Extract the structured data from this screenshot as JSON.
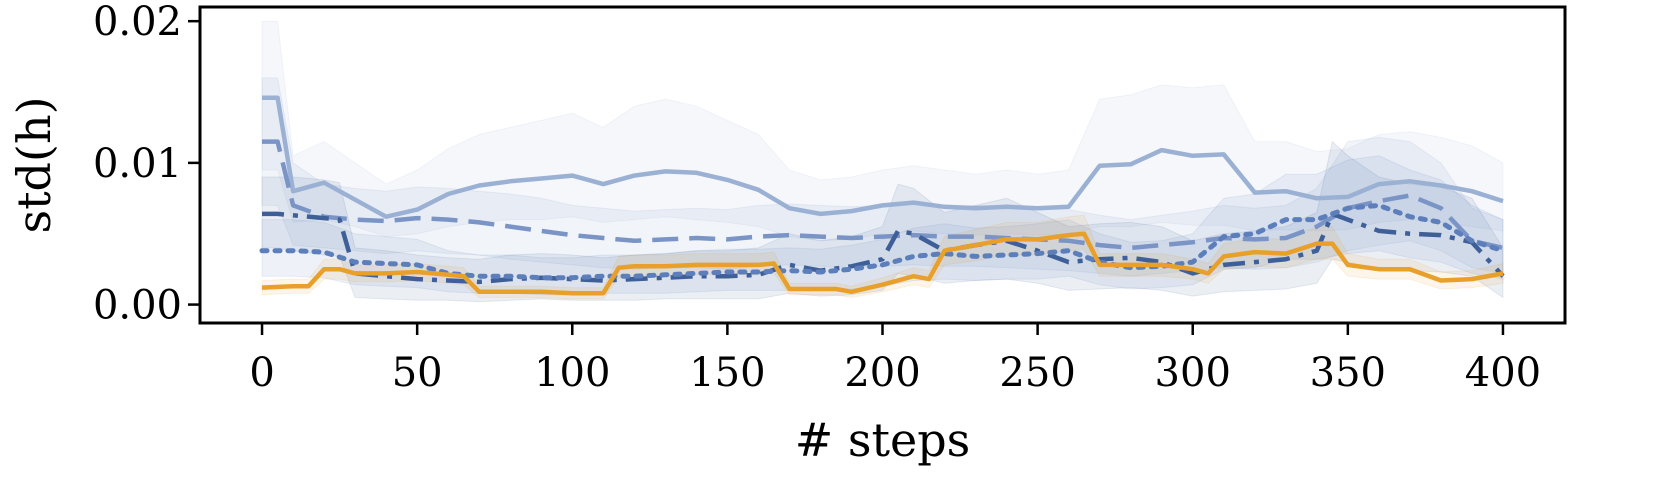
{
  "chart_data": {
    "type": "line",
    "title": "",
    "xlabel": "# steps",
    "ylabel": "std(h)",
    "xlim": [
      -20,
      420
    ],
    "ylim": [
      -0.0013,
      0.021
    ],
    "xticks": [
      0,
      50,
      100,
      150,
      200,
      250,
      300,
      350,
      400
    ],
    "xtick_labels": [
      "0",
      "50",
      "100",
      "150",
      "200",
      "250",
      "300",
      "350",
      "400"
    ],
    "yticks": [
      0.0,
      0.01,
      0.02
    ],
    "ytick_labels": [
      "0.00",
      "0.01",
      "0.02"
    ],
    "grid": false,
    "legend": "none",
    "series": [
      {
        "name": "solid light blue",
        "color": "#9bb1d4",
        "style": "solid",
        "x": [
          0,
          5,
          10,
          20,
          30,
          40,
          50,
          60,
          70,
          80,
          90,
          100,
          110,
          120,
          130,
          140,
          150,
          160,
          170,
          180,
          190,
          200,
          210,
          220,
          230,
          240,
          250,
          260,
          270,
          280,
          290,
          300,
          310,
          320,
          330,
          340,
          350,
          360,
          370,
          380,
          390,
          400
        ],
        "y": [
          0.0146,
          0.0146,
          0.008,
          0.0086,
          0.0074,
          0.0062,
          0.0067,
          0.0078,
          0.0084,
          0.0087,
          0.0089,
          0.0091,
          0.0085,
          0.0091,
          0.0094,
          0.0093,
          0.0088,
          0.0081,
          0.0068,
          0.0064,
          0.0066,
          0.007,
          0.0072,
          0.0069,
          0.0068,
          0.0069,
          0.0068,
          0.0069,
          0.0098,
          0.0099,
          0.0109,
          0.0105,
          0.0106,
          0.0079,
          0.008,
          0.0075,
          0.0076,
          0.0085,
          0.0087,
          0.0084,
          0.008,
          0.0073
        ],
        "band_lo": [
          0.0095,
          0.0095,
          0.0058,
          0.006,
          0.0055,
          0.0048,
          0.005,
          0.0055,
          0.0058,
          0.006,
          0.006,
          0.0062,
          0.0058,
          0.006,
          0.0062,
          0.006,
          0.0058,
          0.0055,
          0.0048,
          0.0045,
          0.0046,
          0.005,
          0.0052,
          0.005,
          0.0049,
          0.005,
          0.0049,
          0.005,
          0.0055,
          0.0055,
          0.0058,
          0.0056,
          0.0056,
          0.0052,
          0.0053,
          0.0052,
          0.0053,
          0.0058,
          0.006,
          0.0058,
          0.0055,
          0.0052
        ],
        "band_hi": [
          0.02,
          0.02,
          0.0105,
          0.0115,
          0.01,
          0.0085,
          0.0095,
          0.011,
          0.012,
          0.0125,
          0.013,
          0.0135,
          0.0125,
          0.014,
          0.0145,
          0.014,
          0.013,
          0.012,
          0.0095,
          0.0088,
          0.009,
          0.0095,
          0.0098,
          0.0095,
          0.0092,
          0.0095,
          0.0092,
          0.0095,
          0.0145,
          0.0148,
          0.0155,
          0.0153,
          0.0155,
          0.0115,
          0.0115,
          0.0108,
          0.011,
          0.012,
          0.0122,
          0.0118,
          0.0112,
          0.01
        ]
      },
      {
        "name": "dashed blue",
        "color": "#7a94c6",
        "style": "dashed",
        "x": [
          0,
          5,
          10,
          20,
          30,
          40,
          50,
          60,
          70,
          80,
          90,
          100,
          110,
          120,
          130,
          140,
          150,
          160,
          170,
          180,
          190,
          200,
          210,
          220,
          230,
          240,
          250,
          260,
          270,
          280,
          290,
          300,
          310,
          320,
          330,
          340,
          350,
          360,
          370,
          380,
          390,
          400
        ],
        "y": [
          0.0115,
          0.0115,
          0.007,
          0.0062,
          0.006,
          0.0059,
          0.0061,
          0.006,
          0.0058,
          0.0055,
          0.0052,
          0.0049,
          0.0047,
          0.0045,
          0.0046,
          0.0047,
          0.0046,
          0.0048,
          0.0049,
          0.0048,
          0.0047,
          0.0048,
          0.0049,
          0.0048,
          0.0048,
          0.0047,
          0.0046,
          0.0045,
          0.0042,
          0.004,
          0.0042,
          0.0044,
          0.0047,
          0.0046,
          0.0047,
          0.0055,
          0.0068,
          0.0073,
          0.0077,
          0.0068,
          0.0045,
          0.004
        ],
        "band_lo": [
          0.007,
          0.007,
          0.0042,
          0.004,
          0.0038,
          0.0036,
          0.0038,
          0.0036,
          0.0035,
          0.0032,
          0.003,
          0.0028,
          0.0026,
          0.0025,
          0.0026,
          0.0026,
          0.0025,
          0.0027,
          0.0028,
          0.0027,
          0.0026,
          0.0027,
          0.0028,
          0.0027,
          0.0027,
          0.0026,
          0.0025,
          0.0024,
          0.0022,
          0.002,
          0.0022,
          0.0024,
          0.0026,
          0.0025,
          0.0026,
          0.003,
          0.0038,
          0.0042,
          0.0045,
          0.0038,
          0.0026,
          0.0022
        ],
        "band_hi": [
          0.016,
          0.016,
          0.01,
          0.0085,
          0.0082,
          0.008,
          0.0083,
          0.0082,
          0.008,
          0.0078,
          0.0075,
          0.007,
          0.0068,
          0.0066,
          0.0067,
          0.0068,
          0.0067,
          0.007,
          0.0071,
          0.007,
          0.0069,
          0.007,
          0.0071,
          0.007,
          0.007,
          0.0069,
          0.0068,
          0.0067,
          0.0063,
          0.006,
          0.0063,
          0.0066,
          0.007,
          0.0068,
          0.007,
          0.0082,
          0.0115,
          0.0118,
          0.0115,
          0.01,
          0.0068,
          0.006
        ]
      },
      {
        "name": "dash-dot dark blue",
        "color": "#3e5f97",
        "style": "dashdot",
        "x": [
          0,
          5,
          10,
          20,
          25,
          30,
          40,
          50,
          60,
          70,
          80,
          90,
          100,
          110,
          120,
          130,
          140,
          150,
          160,
          170,
          180,
          190,
          200,
          205,
          210,
          220,
          230,
          240,
          250,
          260,
          270,
          280,
          290,
          300,
          310,
          320,
          330,
          340,
          345,
          350,
          360,
          370,
          380,
          390,
          400
        ],
        "y": [
          0.0064,
          0.0064,
          0.0063,
          0.0061,
          0.006,
          0.0022,
          0.002,
          0.0018,
          0.0017,
          0.0016,
          0.0018,
          0.0019,
          0.0018,
          0.0017,
          0.0018,
          0.0019,
          0.002,
          0.002,
          0.0021,
          0.0028,
          0.0024,
          0.0027,
          0.0032,
          0.0052,
          0.005,
          0.0038,
          0.0042,
          0.0045,
          0.0038,
          0.003,
          0.0032,
          0.0033,
          0.003,
          0.0022,
          0.0028,
          0.003,
          0.0032,
          0.0038,
          0.0064,
          0.006,
          0.0052,
          0.005,
          0.0049,
          0.0044,
          0.002
        ],
        "band_lo": [
          0.004,
          0.004,
          0.0038,
          0.0035,
          0.0034,
          0.0005,
          0.0004,
          0.0003,
          0.0003,
          0.0002,
          0.0003,
          0.0004,
          0.0003,
          0.0003,
          0.0003,
          0.0004,
          0.0004,
          0.0004,
          0.0004,
          0.0008,
          0.0006,
          0.0007,
          0.001,
          0.0022,
          0.002,
          0.0015,
          0.0017,
          0.0018,
          0.0015,
          0.001,
          0.0011,
          0.0012,
          0.001,
          0.0006,
          0.0009,
          0.001,
          0.0011,
          0.0015,
          0.0032,
          0.003,
          0.0025,
          0.0024,
          0.0023,
          0.002,
          0.0005
        ],
        "band_hi": [
          0.009,
          0.009,
          0.009,
          0.0088,
          0.0086,
          0.004,
          0.0038,
          0.0035,
          0.0033,
          0.0032,
          0.0035,
          0.0036,
          0.0035,
          0.0033,
          0.0035,
          0.0036,
          0.0038,
          0.0038,
          0.004,
          0.005,
          0.0045,
          0.0048,
          0.0055,
          0.0085,
          0.0082,
          0.0065,
          0.007,
          0.0075,
          0.0065,
          0.0055,
          0.0057,
          0.0058,
          0.0055,
          0.0045,
          0.005,
          0.0052,
          0.0055,
          0.0065,
          0.0115,
          0.0105,
          0.009,
          0.0085,
          0.0083,
          0.0075,
          0.004
        ]
      },
      {
        "name": "dotted blue",
        "color": "#5c7fbb",
        "style": "dotted",
        "x": [
          0,
          10,
          20,
          30,
          40,
          50,
          60,
          70,
          80,
          90,
          100,
          110,
          120,
          130,
          140,
          150,
          160,
          170,
          180,
          190,
          200,
          210,
          220,
          230,
          240,
          250,
          260,
          270,
          280,
          290,
          300,
          310,
          320,
          330,
          340,
          350,
          360,
          370,
          380,
          390,
          400
        ],
        "y": [
          0.0038,
          0.0038,
          0.0037,
          0.003,
          0.0029,
          0.0028,
          0.0022,
          0.002,
          0.002,
          0.0019,
          0.0019,
          0.002,
          0.002,
          0.0021,
          0.0022,
          0.0023,
          0.0023,
          0.0024,
          0.0023,
          0.0025,
          0.0028,
          0.0034,
          0.0036,
          0.0034,
          0.0035,
          0.0036,
          0.0038,
          0.003,
          0.0026,
          0.0027,
          0.003,
          0.0048,
          0.005,
          0.006,
          0.006,
          0.0068,
          0.007,
          0.0062,
          0.0058,
          0.0045,
          0.0038
        ],
        "band_lo": [
          0.002,
          0.002,
          0.0019,
          0.0014,
          0.0013,
          0.0012,
          0.0009,
          0.0008,
          0.0008,
          0.0007,
          0.0007,
          0.0008,
          0.0008,
          0.0008,
          0.0009,
          0.001,
          0.001,
          0.001,
          0.001,
          0.0011,
          0.0013,
          0.0017,
          0.0018,
          0.0017,
          0.0018,
          0.0018,
          0.002,
          0.0014,
          0.0011,
          0.0012,
          0.0014,
          0.0025,
          0.0026,
          0.0032,
          0.0032,
          0.0036,
          0.0038,
          0.0033,
          0.003,
          0.0022,
          0.0018
        ],
        "band_hi": [
          0.006,
          0.006,
          0.0058,
          0.005,
          0.0048,
          0.0046,
          0.0038,
          0.0035,
          0.0035,
          0.0033,
          0.0033,
          0.0035,
          0.0035,
          0.0036,
          0.0038,
          0.0039,
          0.0039,
          0.004,
          0.0039,
          0.0042,
          0.0046,
          0.0054,
          0.0057,
          0.0054,
          0.0055,
          0.0057,
          0.006,
          0.005,
          0.0044,
          0.0045,
          0.005,
          0.0075,
          0.0078,
          0.0092,
          0.0092,
          0.0102,
          0.0105,
          0.0095,
          0.0088,
          0.007,
          0.006
        ]
      },
      {
        "name": "solid orange",
        "color": "#e8a02a",
        "style": "solid",
        "x": [
          0,
          10,
          15,
          20,
          25,
          30,
          40,
          50,
          55,
          60,
          65,
          70,
          80,
          90,
          100,
          105,
          110,
          115,
          120,
          130,
          140,
          150,
          160,
          165,
          170,
          180,
          185,
          190,
          200,
          210,
          215,
          220,
          230,
          240,
          250,
          260,
          265,
          270,
          280,
          290,
          300,
          305,
          310,
          320,
          330,
          340,
          345,
          350,
          360,
          370,
          380,
          390,
          400
        ],
        "y": [
          0.0012,
          0.0013,
          0.0013,
          0.0025,
          0.0025,
          0.0022,
          0.0022,
          0.0023,
          0.0022,
          0.0021,
          0.002,
          0.0009,
          0.0009,
          0.0009,
          0.0008,
          0.0008,
          0.0008,
          0.0026,
          0.0027,
          0.0027,
          0.0028,
          0.0028,
          0.0028,
          0.0029,
          0.0011,
          0.0011,
          0.0011,
          0.0009,
          0.0014,
          0.002,
          0.0018,
          0.0038,
          0.0042,
          0.0046,
          0.0046,
          0.0049,
          0.005,
          0.0028,
          0.0028,
          0.0028,
          0.0025,
          0.0022,
          0.0034,
          0.0037,
          0.0036,
          0.0043,
          0.0043,
          0.0028,
          0.0025,
          0.0025,
          0.0017,
          0.0018,
          0.0022
        ],
        "band_lo": [
          0.0007,
          0.0008,
          0.0008,
          0.0018,
          0.0018,
          0.0016,
          0.0016,
          0.0017,
          0.0016,
          0.0015,
          0.0014,
          0.0005,
          0.0005,
          0.0005,
          0.0004,
          0.0004,
          0.0004,
          0.0019,
          0.002,
          0.002,
          0.0021,
          0.0021,
          0.0021,
          0.0022,
          0.0007,
          0.0007,
          0.0007,
          0.0005,
          0.0009,
          0.0014,
          0.0012,
          0.0028,
          0.0031,
          0.0035,
          0.0035,
          0.0038,
          0.0039,
          0.002,
          0.002,
          0.002,
          0.0018,
          0.0015,
          0.0025,
          0.0027,
          0.0026,
          0.0032,
          0.0032,
          0.002,
          0.0018,
          0.0018,
          0.0011,
          0.0012,
          0.0015
        ],
        "band_hi": [
          0.0017,
          0.0018,
          0.0018,
          0.0032,
          0.0032,
          0.0028,
          0.0028,
          0.0029,
          0.0028,
          0.0027,
          0.0026,
          0.0013,
          0.0013,
          0.0013,
          0.0012,
          0.0012,
          0.0012,
          0.0034,
          0.0035,
          0.0035,
          0.0036,
          0.0036,
          0.0036,
          0.0037,
          0.0015,
          0.0015,
          0.0015,
          0.0013,
          0.0019,
          0.0026,
          0.0024,
          0.0048,
          0.0053,
          0.0058,
          0.0058,
          0.0062,
          0.0063,
          0.0036,
          0.0036,
          0.0036,
          0.0032,
          0.0029,
          0.0043,
          0.0047,
          0.0046,
          0.0055,
          0.0055,
          0.0036,
          0.0032,
          0.0032,
          0.0023,
          0.0024,
          0.0029
        ]
      }
    ]
  }
}
